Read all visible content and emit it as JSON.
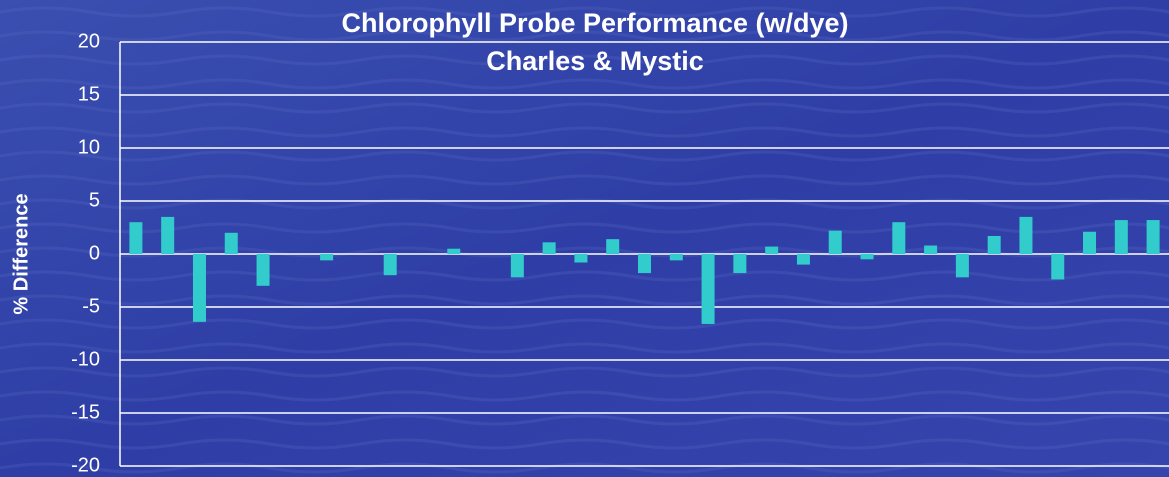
{
  "chart_data": {
    "type": "bar",
    "title": "Chlorophyll Probe Performance (w/dye)",
    "subtitle": "Charles & Mystic",
    "y_label": "% Difference",
    "categories": [
      null,
      null,
      null,
      null,
      null,
      null,
      null,
      null,
      null,
      null,
      null,
      null,
      null,
      null,
      null,
      null,
      null,
      null,
      null,
      null,
      null,
      null,
      null,
      null,
      null,
      null,
      null,
      null,
      null,
      null,
      null,
      null,
      null
    ],
    "values": [
      3.0,
      3.5,
      -6.4,
      2.0,
      -3.0,
      0,
      -0.6,
      0,
      -2.0,
      0,
      0.5,
      0,
      -2.2,
      1.1,
      -0.8,
      1.4,
      -1.8,
      -0.6,
      -6.6,
      -1.8,
      0.7,
      -1.0,
      2.2,
      -0.5,
      3.0,
      0.8,
      -2.2,
      1.7,
      3.5,
      -2.4,
      2.1,
      3.2,
      3.2
    ],
    "color": "#33cccc",
    "ylim": [
      -20,
      20
    ],
    "yticks": [
      -20,
      -15,
      -10,
      -5,
      0,
      5,
      10,
      15,
      20
    ],
    "grid": true
  }
}
